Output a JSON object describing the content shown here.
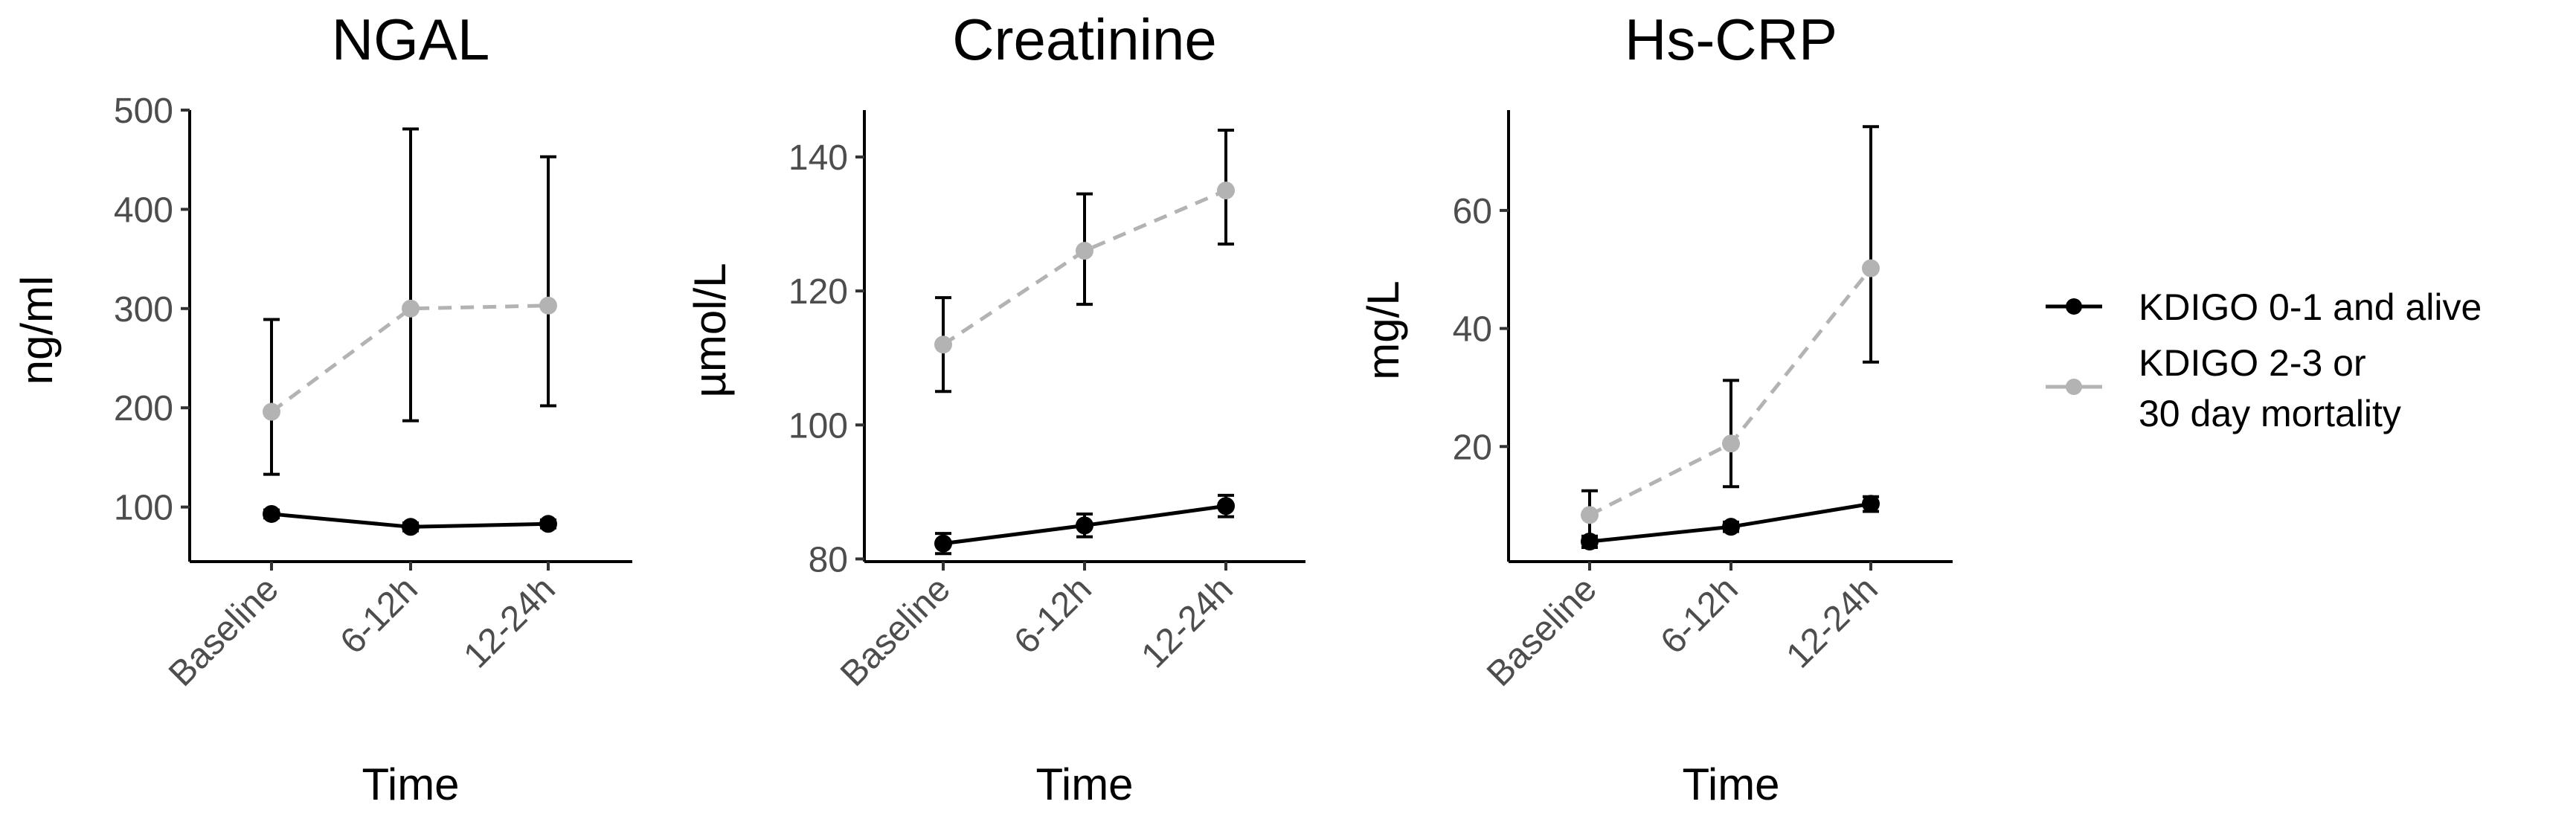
{
  "chart_data": [
    {
      "type": "line",
      "title": "NGAL",
      "xlabel": "Time",
      "ylabel": "ng/ml",
      "categories": [
        "Baseline",
        "6-12h",
        "12-24h"
      ],
      "ylim": [
        45,
        500
      ],
      "yticks": [
        100,
        200,
        300,
        400,
        500
      ],
      "series": [
        {
          "name": "KDIGO 0-1 and alive",
          "color": "#000000",
          "linestyle": "solid",
          "values": [
            93,
            80,
            83
          ],
          "lower": [
            89,
            76,
            79
          ],
          "upper": [
            97,
            84,
            87
          ]
        },
        {
          "name": "KDIGO 2-3 or 30 day mortality",
          "color": "#b3b3b3",
          "linestyle": "dashed",
          "values": [
            196,
            300,
            303
          ],
          "lower": [
            133,
            187,
            202
          ],
          "upper": [
            289,
            481,
            453
          ]
        }
      ]
    },
    {
      "type": "line",
      "title": "Creatinine",
      "xlabel": "Time",
      "ylabel": "µmol/L",
      "categories": [
        "Baseline",
        "6-12h",
        "12-24h"
      ],
      "ylim": [
        79.6,
        147
      ],
      "yticks": [
        80,
        100,
        120,
        140
      ],
      "series": [
        {
          "name": "KDIGO 0-1 and alive",
          "color": "#000000",
          "linestyle": "solid",
          "values": [
            82.3,
            85.0,
            87.9
          ],
          "lower": [
            80.8,
            83.3,
            86.3
          ],
          "upper": [
            83.8,
            86.7,
            89.5
          ]
        },
        {
          "name": "KDIGO 2-3 or 30 day mortality",
          "color": "#b3b3b3",
          "linestyle": "dashed",
          "values": [
            112,
            126,
            135
          ],
          "lower": [
            105,
            118,
            127
          ],
          "upper": [
            119,
            134.5,
            144
          ]
        }
      ]
    },
    {
      "type": "line",
      "title": "Hs-CRP",
      "xlabel": "Time",
      "ylabel": "mg/L",
      "categories": [
        "Baseline",
        "6-12h",
        "12-24h"
      ],
      "ylim": [
        0.5,
        77
      ],
      "yticks": [
        20,
        40,
        60
      ],
      "series": [
        {
          "name": "KDIGO 0-1 and alive",
          "color": "#000000",
          "linestyle": "solid",
          "values": [
            3.9,
            6.4,
            10.3
          ],
          "lower": [
            2.9,
            5.6,
            9.0
          ],
          "upper": [
            4.8,
            7.2,
            11.5
          ]
        },
        {
          "name": "KDIGO 2-3 or 30 day mortality",
          "color": "#b3b3b3",
          "linestyle": "dashed",
          "values": [
            8.4,
            20.5,
            50.2
          ],
          "lower": [
            4.8,
            13.2,
            34.3
          ],
          "upper": [
            12.5,
            31.2,
            74.2
          ]
        }
      ]
    }
  ],
  "legend": {
    "position": "right",
    "entries": [
      {
        "line1": "KDIGO 0-1 and alive",
        "line2": "",
        "color": "#000000"
      },
      {
        "line1": "KDIGO 2-3 or",
        "line2": "30 day mortality",
        "color": "#b3b3b3"
      }
    ]
  }
}
